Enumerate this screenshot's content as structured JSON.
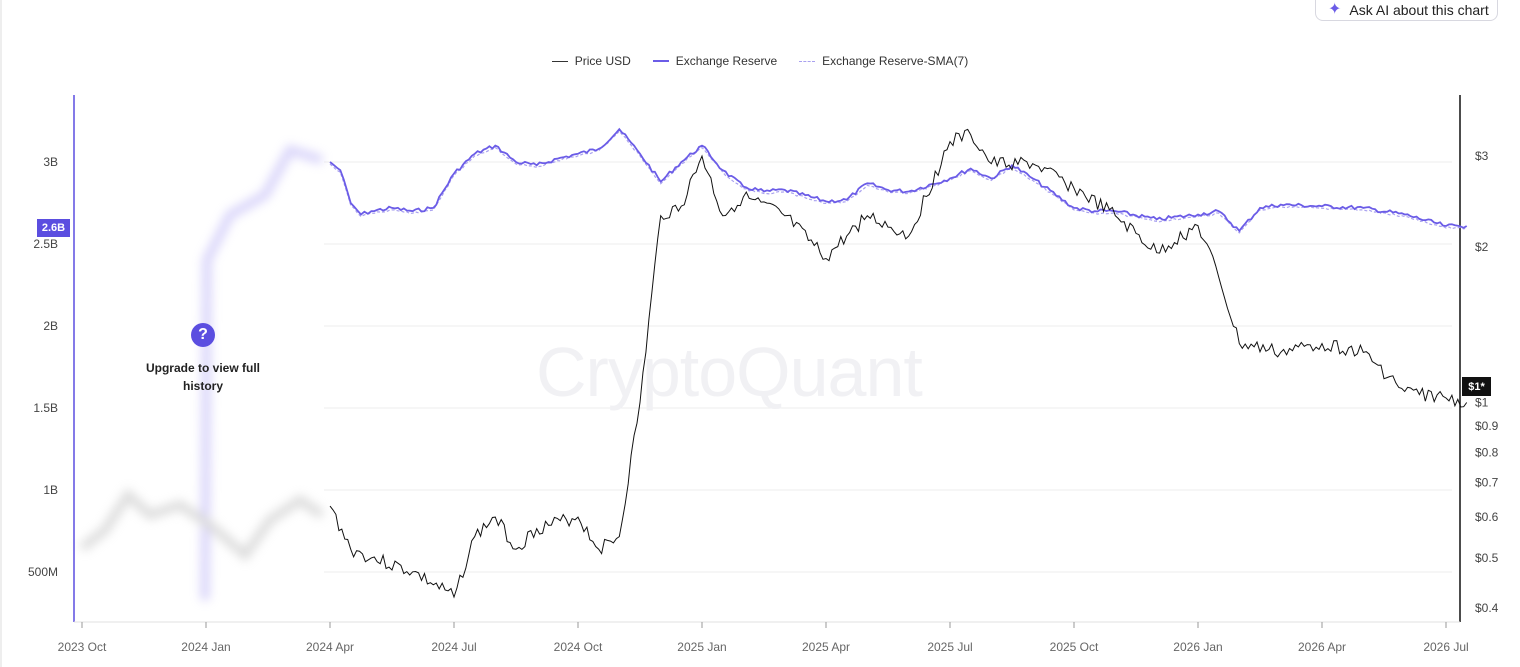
{
  "ask_ai": {
    "label": "Ask AI about this chart",
    "icon": "sparkle-icon"
  },
  "legend": [
    {
      "label": "Price USD",
      "color": "#333333"
    },
    {
      "label": "Exchange Reserve",
      "color": "#6b5ce7"
    },
    {
      "label": "Exchange Reserve-SMA(7)",
      "color": "#a9a1ef"
    }
  ],
  "locked_overlay": {
    "icon": "question-icon",
    "icon_text": "?",
    "text": "Upgrade to view full history"
  },
  "watermark": "CryptoQuant",
  "badges": {
    "reserve_current": "2.6B",
    "price_current": "$1*"
  },
  "colors": {
    "accent": "#5b4ee0",
    "reserve": "#6b5ce7",
    "sma": "#a9a1ef",
    "price": "#111111"
  },
  "chart_data": {
    "type": "line",
    "x_labels": [
      "2023 Oct",
      "2024 Jan",
      "2024 Apr",
      "2024 Jul",
      "2024 Oct",
      "2025 Jan",
      "2025 Apr",
      "2025 Jul",
      "2025 Oct",
      "2026 Jan",
      "2026 Apr",
      "2026 Jul"
    ],
    "y_left_ticks": [
      "3B",
      "2.5B",
      "2B",
      "1.5B",
      "1B",
      "500M"
    ],
    "y_right_ticks": [
      "$3",
      "$2",
      "$1",
      "$0.9",
      "$0.8",
      "$0.7",
      "$0.6",
      "$0.5",
      "$0.4"
    ],
    "y_left_scale": "linear",
    "y_right_scale": "log",
    "series": [
      {
        "name": "Exchange Reserve",
        "axis": "left",
        "points": [
          [
            "2024 Apr",
            3.0
          ],
          [
            "2024 Apr",
            2.95
          ],
          [
            "2024 Apr",
            2.75
          ],
          [
            "2024 Apr",
            2.68
          ],
          [
            "2024 May",
            2.7
          ],
          [
            "2024 May",
            2.72
          ],
          [
            "2024 Jun",
            2.7
          ],
          [
            "2024 Jun",
            2.72
          ],
          [
            "2024 Jul",
            2.93
          ],
          [
            "2024 Jul",
            3.05
          ],
          [
            "2024 Aug",
            3.1
          ],
          [
            "2024 Aug",
            3.0
          ],
          [
            "2024 Sep",
            2.98
          ],
          [
            "2024 Sep",
            3.02
          ],
          [
            "2024 Oct",
            3.05
          ],
          [
            "2024 Oct",
            3.08
          ],
          [
            "2024 Nov",
            3.2
          ],
          [
            "2024 Nov",
            3.05
          ],
          [
            "2024 Dec",
            2.88
          ],
          [
            "2024 Dec",
            3.0
          ],
          [
            "2025 Jan",
            3.1
          ],
          [
            "2025 Jan",
            2.95
          ],
          [
            "2025 Feb",
            2.85
          ],
          [
            "2025 Feb",
            2.82
          ],
          [
            "2025 Mar",
            2.83
          ],
          [
            "2025 Apr",
            2.76
          ],
          [
            "2025 Apr",
            2.77
          ],
          [
            "2025 May",
            2.87
          ],
          [
            "2025 May",
            2.83
          ],
          [
            "2025 Jun",
            2.82
          ],
          [
            "2025 Jul",
            2.9
          ],
          [
            "2025 Jul",
            2.96
          ],
          [
            "2025 Aug",
            2.9
          ],
          [
            "2025 Aug",
            2.98
          ],
          [
            "2025 Sep",
            2.9
          ],
          [
            "2025 Oct",
            2.72
          ],
          [
            "2025 Oct",
            2.7
          ],
          [
            "2025 Nov",
            2.7
          ],
          [
            "2025 Dec",
            2.65
          ],
          [
            "2026 Jan",
            2.68
          ],
          [
            "2026 Jan",
            2.7
          ],
          [
            "2026 Feb",
            2.58
          ],
          [
            "2026 Feb",
            2.72
          ],
          [
            "2026 Mar",
            2.74
          ],
          [
            "2026 Apr",
            2.73
          ],
          [
            "2026 May",
            2.72
          ],
          [
            "2026 Jun",
            2.68
          ],
          [
            "2026 Jul",
            2.61
          ],
          [
            "2026 Jul",
            2.61
          ]
        ]
      },
      {
        "name": "Price USD",
        "axis": "right",
        "points": [
          [
            "2024 Apr",
            0.63
          ],
          [
            "2024 Apr",
            0.52
          ],
          [
            "2024 May",
            0.5
          ],
          [
            "2024 Jun",
            0.47
          ],
          [
            "2024 Jul",
            0.42
          ],
          [
            "2024 Jul",
            0.55
          ],
          [
            "2024 Aug",
            0.6
          ],
          [
            "2024 Aug",
            0.52
          ],
          [
            "2024 Sep",
            0.57
          ],
          [
            "2024 Oct",
            0.6
          ],
          [
            "2024 Oct",
            0.52
          ],
          [
            "2024 Nov",
            0.55
          ],
          [
            "2024 Nov",
            1.0
          ],
          [
            "2024 Dec",
            2.3
          ],
          [
            "2024 Dec",
            2.4
          ],
          [
            "2025 Jan",
            3.0
          ],
          [
            "2025 Jan",
            2.3
          ],
          [
            "2025 Feb",
            2.5
          ],
          [
            "2025 Mar",
            2.3
          ],
          [
            "2025 Apr",
            1.9
          ],
          [
            "2025 Apr",
            2.1
          ],
          [
            "2025 May",
            2.3
          ],
          [
            "2025 Jun",
            2.1
          ],
          [
            "2025 Jul",
            3.2
          ],
          [
            "2025 Jul",
            3.3
          ],
          [
            "2025 Aug",
            2.9
          ],
          [
            "2025 Sep",
            2.9
          ],
          [
            "2025 Oct",
            2.6
          ],
          [
            "2025 Nov",
            2.3
          ],
          [
            "2025 Dec",
            1.95
          ],
          [
            "2026 Jan",
            2.2
          ],
          [
            "2026 Jan",
            1.75
          ],
          [
            "2026 Feb",
            1.3
          ],
          [
            "2026 Mar",
            1.25
          ],
          [
            "2026 Apr",
            1.3
          ],
          [
            "2026 May",
            1.25
          ],
          [
            "2026 Jun",
            1.05
          ],
          [
            "2026 Jul",
            1.02
          ],
          [
            "2026 Jul",
            1.0
          ]
        ]
      }
    ],
    "legend_position": "top-center",
    "grid": true
  }
}
